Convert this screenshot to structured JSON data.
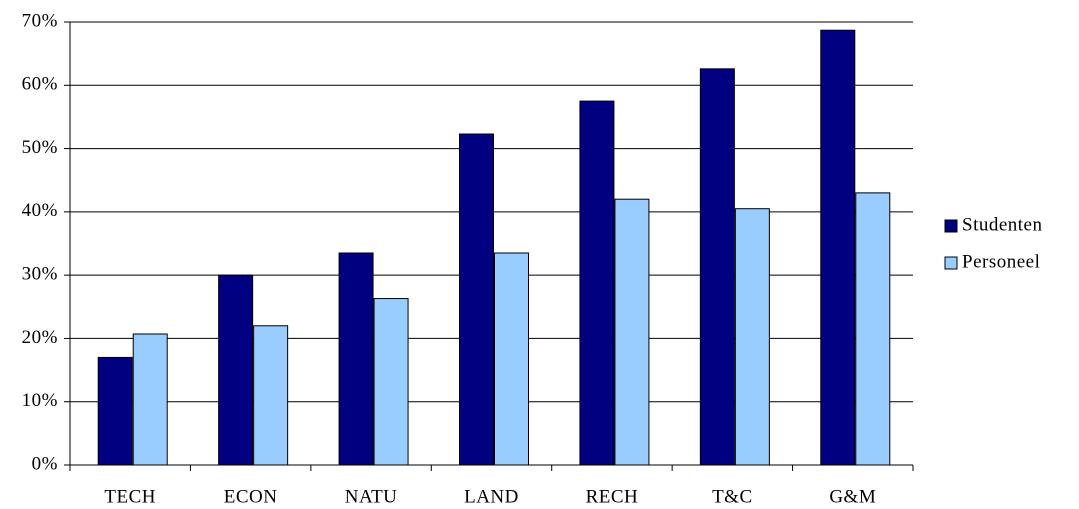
{
  "chart_data": {
    "type": "bar",
    "categories": [
      "TECH",
      "ECON",
      "NATU",
      "LAND",
      "RECH",
      "T&C",
      "G&M"
    ],
    "series": [
      {
        "name": "Studenten",
        "color": "#000080",
        "values": [
          17,
          30,
          33.5,
          52.3,
          57.5,
          62.6,
          68.7
        ]
      },
      {
        "name": "Personeel",
        "color": "#99ccff",
        "values": [
          20.7,
          22,
          26.3,
          33.5,
          42,
          40.5,
          43
        ]
      }
    ],
    "ylim": [
      0,
      70
    ],
    "yticks": [
      {
        "value": 0,
        "label": "0%"
      },
      {
        "value": 10,
        "label": "10%"
      },
      {
        "value": 20,
        "label": "20%"
      },
      {
        "value": 30,
        "label": "30%"
      },
      {
        "value": 40,
        "label": "40%"
      },
      {
        "value": 50,
        "label": "50%"
      },
      {
        "value": 60,
        "label": "60%"
      },
      {
        "value": 70,
        "label": "70%"
      }
    ],
    "grid": true,
    "legend": "right"
  }
}
